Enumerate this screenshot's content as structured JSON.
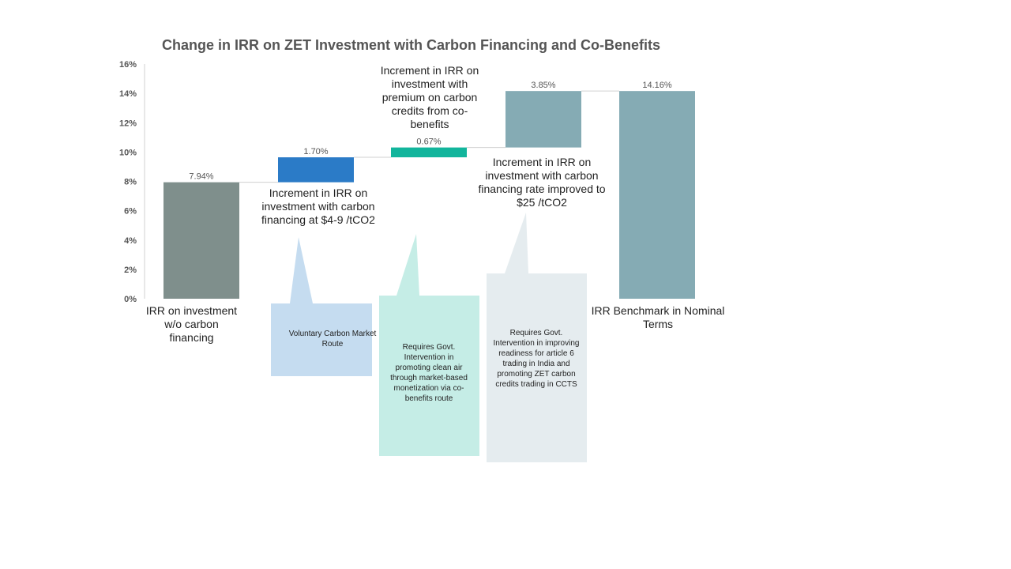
{
  "chart_data": {
    "type": "bar",
    "subtype": "waterfall",
    "title": "Change in IRR on ZET Investment with Carbon Financing and Co-Benefits",
    "ylim": [
      0,
      16
    ],
    "yticks": [
      "0%",
      "2%",
      "4%",
      "6%",
      "8%",
      "10%",
      "12%",
      "14%",
      "16%"
    ],
    "bars": [
      {
        "category": "IRR on investment w/o carbon financing",
        "start": 0,
        "value": 7.94,
        "label": "7.94%",
        "color": "#7f8f8c"
      },
      {
        "category": "Increment in IRR on investment with carbon financing at $4-9 /tCO2",
        "start": 7.94,
        "value": 1.7,
        "label": "1.70%",
        "color": "#2b7bc7"
      },
      {
        "category": "Increment in IRR on investment with premium on carbon credits from co-benefits",
        "start": 9.64,
        "value": 0.67,
        "label": "0.67%",
        "color": "#12b59c"
      },
      {
        "category": "Increment in IRR on investment with carbon financing rate improved to $25 /tCO2",
        "start": 10.31,
        "value": 3.85,
        "label": "3.85%",
        "color": "#85abb4"
      },
      {
        "category": "IRR Benchmark in Nominal Terms",
        "start": 0,
        "value": 14.16,
        "label": "14.16%",
        "color": "#85abb4"
      }
    ],
    "grid": false,
    "legend": "none"
  },
  "callouts": [
    {
      "text": "Voluntary Carbon Market Route",
      "color": "#c5dcf0"
    },
    {
      "text": "Requires Govt. Intervention in promoting clean air through market-based monetization via co-benefits route",
      "color": "#c5ede6"
    },
    {
      "text": "Requires Govt. Intervention in improving readiness for article 6 trading in India and promoting ZET carbon credits trading in CCTS",
      "color": "#e5ecef"
    }
  ]
}
